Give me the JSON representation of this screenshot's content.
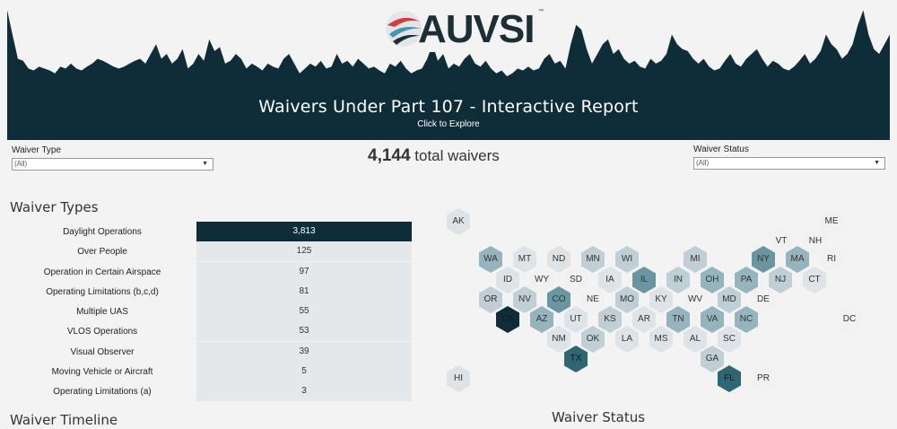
{
  "header": {
    "logo_text": "AUVSI",
    "logo_tm": "™",
    "title": "Waivers Under Part 107 - Interactive Report",
    "subtitle": "Click to Explore",
    "sparkline_values": [
      80,
      55,
      30,
      28,
      20,
      18,
      22,
      20,
      18,
      15,
      22,
      20,
      25,
      20,
      18,
      22,
      25,
      30,
      28,
      25,
      22,
      20,
      22,
      25,
      28,
      30,
      25,
      35,
      45,
      30,
      35,
      25,
      30,
      40,
      20,
      25,
      35,
      28,
      50,
      38,
      42,
      25,
      28,
      35,
      30,
      20,
      25,
      22,
      18,
      25,
      22,
      20,
      30,
      35,
      25,
      15,
      20,
      25,
      22,
      28,
      20,
      22,
      35,
      25,
      28,
      22,
      30,
      25,
      20,
      22,
      18,
      15,
      25,
      22,
      28,
      20,
      15,
      18,
      20,
      30,
      45,
      28,
      35,
      20,
      25,
      22,
      30,
      35,
      25,
      22,
      28,
      20,
      15,
      18,
      12,
      15,
      20,
      18,
      22,
      18,
      20,
      30,
      35,
      25,
      28,
      20,
      45,
      65,
      60,
      40,
      25,
      35,
      45,
      50,
      35,
      40,
      30,
      25,
      28,
      22,
      20,
      30,
      25,
      28,
      35,
      55,
      45,
      40,
      38,
      30,
      25,
      30,
      22,
      18,
      20,
      28,
      35,
      25,
      22,
      30,
      35,
      40,
      30,
      22,
      28,
      25,
      20,
      18,
      22,
      28,
      35,
      25,
      30,
      38,
      55,
      45,
      40,
      30,
      35,
      45,
      65,
      80,
      55,
      40,
      35,
      45,
      55
    ]
  },
  "filters": {
    "waiver_type_label": "Waiver Type",
    "waiver_type_value": "(All)",
    "waiver_status_label": "Waiver Status",
    "waiver_status_value": "(All)"
  },
  "total": {
    "count": "4,144",
    "suffix": "total waivers"
  },
  "sections": {
    "waiver_types": "Waiver Types",
    "waiver_timeline": "Waiver Timeline",
    "waiver_status": "Waiver Status"
  },
  "colors": {
    "dark": "#0e2d38",
    "bar_light": "#e4e8ea"
  },
  "waiver_types": [
    {
      "label": "Daylight Operations",
      "value": "3,813"
    },
    {
      "label": "Over People",
      "value": "125"
    },
    {
      "label": "Operation in Certain Airspace",
      "value": "97"
    },
    {
      "label": "Operating Limitations (b,c,d)",
      "value": "81"
    },
    {
      "label": "Multiple UAS",
      "value": "55"
    },
    {
      "label": "VLOS Operations",
      "value": "53"
    },
    {
      "label": "Visual Observer",
      "value": "39"
    },
    {
      "label": "Moving Vehicle or Aircraft",
      "value": "5"
    },
    {
      "label": "Operating Limitations (a)",
      "value": "3"
    }
  ],
  "states": [
    {
      "code": "AK",
      "level": 1
    },
    {
      "code": "ME",
      "level": 0
    },
    {
      "code": "VT",
      "level": 0
    },
    {
      "code": "NH",
      "level": 0
    },
    {
      "code": "WA",
      "level": 3
    },
    {
      "code": "MT",
      "level": 1
    },
    {
      "code": "ND",
      "level": 1
    },
    {
      "code": "MN",
      "level": 2
    },
    {
      "code": "WI",
      "level": 2
    },
    {
      "code": "MI",
      "level": 2
    },
    {
      "code": "NY",
      "level": 4
    },
    {
      "code": "MA",
      "level": 3
    },
    {
      "code": "RI",
      "level": 0
    },
    {
      "code": "ID",
      "level": 1
    },
    {
      "code": "WY",
      "level": 0
    },
    {
      "code": "SD",
      "level": 0
    },
    {
      "code": "IA",
      "level": 1
    },
    {
      "code": "IL",
      "level": 4
    },
    {
      "code": "IN",
      "level": 2
    },
    {
      "code": "OH",
      "level": 3
    },
    {
      "code": "PA",
      "level": 3
    },
    {
      "code": "NJ",
      "level": 2
    },
    {
      "code": "CT",
      "level": 1
    },
    {
      "code": "OR",
      "level": 2
    },
    {
      "code": "NV",
      "level": 2
    },
    {
      "code": "CO",
      "level": 4
    },
    {
      "code": "NE",
      "level": 0
    },
    {
      "code": "MO",
      "level": 2
    },
    {
      "code": "KY",
      "level": 1
    },
    {
      "code": "WV",
      "level": 0
    },
    {
      "code": "MD",
      "level": 2
    },
    {
      "code": "DE",
      "level": 0
    },
    {
      "code": "DC",
      "level": 0
    },
    {
      "code": "CA",
      "level": 6
    },
    {
      "code": "AZ",
      "level": 3
    },
    {
      "code": "UT",
      "level": 1
    },
    {
      "code": "KS",
      "level": 2
    },
    {
      "code": "AR",
      "level": 1
    },
    {
      "code": "TN",
      "level": 3
    },
    {
      "code": "VA",
      "level": 3
    },
    {
      "code": "NC",
      "level": 3
    },
    {
      "code": "NM",
      "level": 1
    },
    {
      "code": "OK",
      "level": 2
    },
    {
      "code": "LA",
      "level": 1
    },
    {
      "code": "MS",
      "level": 1
    },
    {
      "code": "AL",
      "level": 1
    },
    {
      "code": "SC",
      "level": 1
    },
    {
      "code": "TX",
      "level": 5
    },
    {
      "code": "GA",
      "level": 2
    },
    {
      "code": "HI",
      "level": 1
    },
    {
      "code": "FL",
      "level": 5
    },
    {
      "code": "PR",
      "level": 0
    }
  ],
  "legend_scale": [
    "#f1f1f1",
    "#dde3e6",
    "#bfcfd5",
    "#95b4bd",
    "#6a96a2",
    "#2f6674",
    "#0e2d38"
  ]
}
